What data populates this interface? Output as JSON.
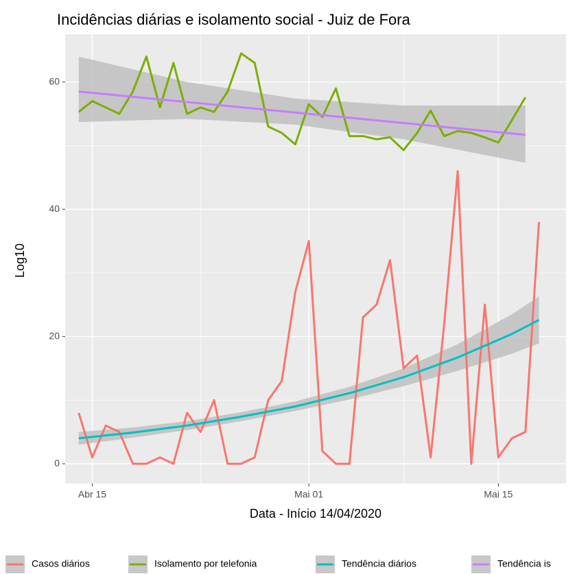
{
  "chart_data": {
    "type": "line",
    "title": "Incidências diárias e isolamento social - Juiz de Fora",
    "x_label": "Data - Início 14/04/2020",
    "y_label": "Log10",
    "x": [
      "04-14",
      "04-15",
      "04-16",
      "04-17",
      "04-18",
      "04-19",
      "04-20",
      "04-21",
      "04-22",
      "04-23",
      "04-24",
      "04-25",
      "04-26",
      "04-27",
      "04-28",
      "04-29",
      "04-30",
      "05-01",
      "05-02",
      "05-03",
      "05-04",
      "05-05",
      "05-06",
      "05-07",
      "05-08",
      "05-09",
      "05-10",
      "05-11",
      "05-12",
      "05-13",
      "05-14",
      "05-15",
      "05-16",
      "05-17",
      "05-18"
    ],
    "series": [
      {
        "name": "Casos diários",
        "color": "#F8766D",
        "values": [
          8,
          1,
          6,
          5,
          0,
          0,
          1,
          0,
          8,
          5,
          10,
          0,
          0,
          1,
          10,
          13,
          27,
          35,
          2,
          0,
          0,
          23,
          25,
          32,
          15,
          17,
          1,
          22,
          46,
          0,
          25,
          1,
          4,
          5,
          38
        ]
      },
      {
        "name": "Isolamento por telefonia",
        "color": "#7CAE00",
        "values": [
          55.3,
          57,
          56,
          55,
          58.5,
          64,
          56,
          63,
          55,
          56,
          55.3,
          58.5,
          64.5,
          63,
          53,
          52,
          50.2,
          56.5,
          54.5,
          59,
          51.5,
          51.5,
          51,
          51.3,
          49.3,
          52,
          55.5,
          51.5,
          52.3,
          52,
          51.3,
          50.5,
          54,
          57.6,
          null
        ]
      },
      {
        "name": "Tendência diários",
        "color": "#00BFC4",
        "band_color": "#bdbdbd",
        "x": [
          "04-14",
          "04-18",
          "04-22",
          "04-26",
          "04-30",
          "05-04",
          "05-08",
          "05-12",
          "05-16",
          "05-18"
        ],
        "values": [
          4.0,
          4.9,
          6.0,
          7.4,
          9.0,
          11.1,
          13.6,
          16.7,
          20.4,
          22.6
        ],
        "lower": [
          3.0,
          4.1,
          5.3,
          6.7,
          8.3,
          10.1,
          12.2,
          14.6,
          17.3,
          18.9
        ],
        "upper": [
          5.0,
          5.7,
          6.7,
          8.1,
          9.8,
          12.1,
          15.0,
          18.8,
          23.5,
          26.3
        ]
      },
      {
        "name": "Tendência is",
        "color": "#C77CFF",
        "band_color": "#bdbdbd",
        "x": [
          "04-14",
          "04-22",
          "04-30",
          "05-08",
          "05-17"
        ],
        "values": [
          58.5,
          56.85,
          55.2,
          53.55,
          51.7
        ],
        "lower": [
          53.7,
          54.2,
          53.3,
          51.0,
          47.3
        ],
        "upper": [
          64.0,
          60.0,
          57.4,
          56.3,
          56.3
        ]
      }
    ],
    "xlim": [
      "04-13",
      "05-20"
    ],
    "xticks": [
      {
        "value": "04-15",
        "label": "Abr 15"
      },
      {
        "value": "05-01",
        "label": "Mai 01"
      },
      {
        "value": "05-15",
        "label": "Mai 15"
      }
    ],
    "ylim": [
      -3.1,
      67.5
    ],
    "yticks": [
      0,
      20,
      40,
      60
    ],
    "grid": true,
    "legend": "bottom"
  }
}
